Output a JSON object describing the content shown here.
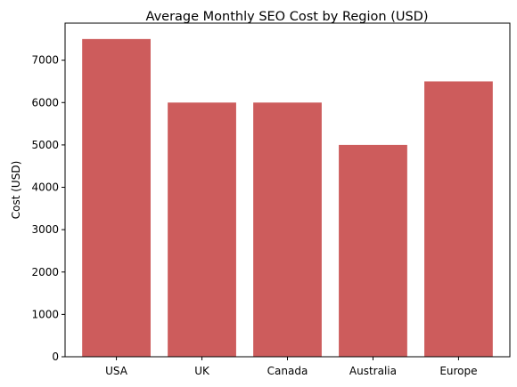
{
  "chart_data": {
    "type": "bar",
    "title": "Average Monthly SEO Cost by Region (USD)",
    "xlabel": "",
    "ylabel": "Cost (USD)",
    "categories": [
      "USA",
      "UK",
      "Canada",
      "Australia",
      "Europe"
    ],
    "values": [
      7500,
      6000,
      6000,
      5000,
      6500
    ],
    "ylim": [
      0,
      7875
    ],
    "yticks": [
      0,
      1000,
      2000,
      3000,
      4000,
      5000,
      6000,
      7000
    ],
    "grid": false,
    "legend": "none",
    "bar_color": "#cd5c5c"
  }
}
